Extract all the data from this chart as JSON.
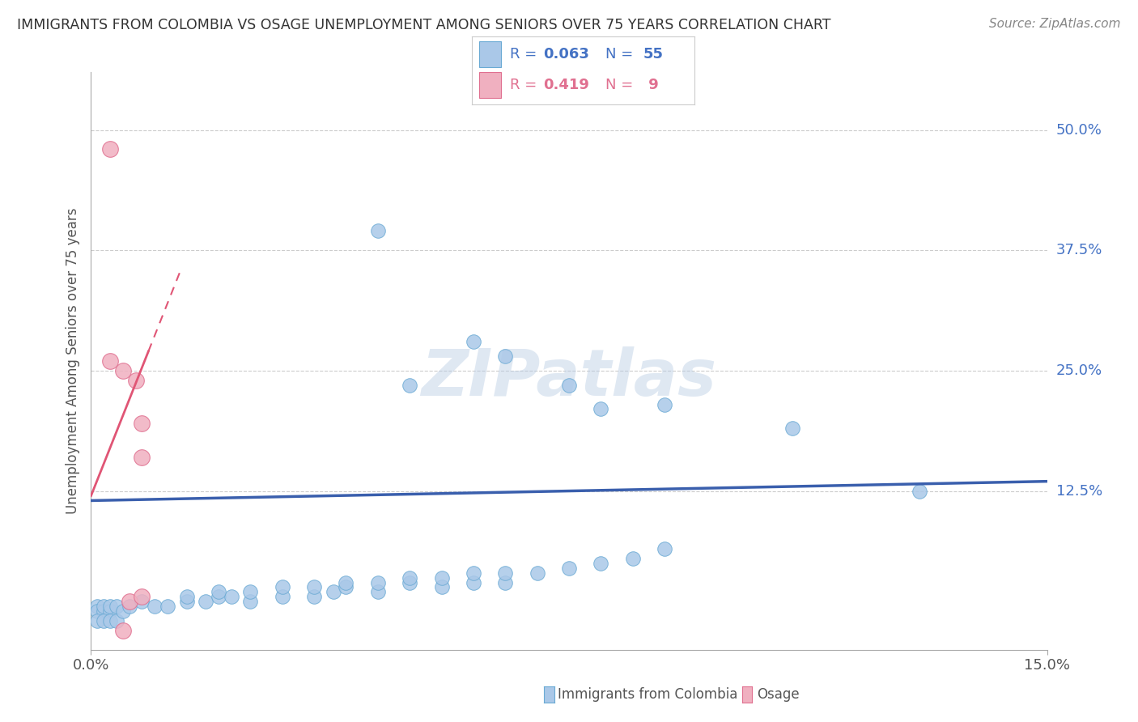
{
  "title": "IMMIGRANTS FROM COLOMBIA VS OSAGE UNEMPLOYMENT AMONG SENIORS OVER 75 YEARS CORRELATION CHART",
  "source": "Source: ZipAtlas.com",
  "ylabel": "Unemployment Among Seniors over 75 years",
  "ylabel_right_ticks": [
    "50.0%",
    "37.5%",
    "25.0%",
    "12.5%"
  ],
  "ylabel_right_values": [
    0.5,
    0.375,
    0.25,
    0.125
  ],
  "xmin": 0.0,
  "xmax": 0.15,
  "ymin": -0.04,
  "ymax": 0.56,
  "colombia_color": "#aac8e8",
  "colombia_edge": "#6aaad4",
  "osage_color": "#f0b0c0",
  "osage_edge": "#e07090",
  "trendline_colombia_color": "#3a5fad",
  "trendline_osage_color": "#e05575",
  "watermark": "ZIPatlas",
  "colombia_points": [
    [
      0.001,
      0.005
    ],
    [
      0.001,
      0.0
    ],
    [
      0.002,
      0.0
    ],
    [
      0.002,
      0.005
    ],
    [
      0.003,
      0.0
    ],
    [
      0.003,
      0.005
    ],
    [
      0.004,
      0.005
    ],
    [
      0.001,
      -0.01
    ],
    [
      0.002,
      -0.01
    ],
    [
      0.003,
      -0.01
    ],
    [
      0.004,
      -0.01
    ],
    [
      0.005,
      0.0
    ],
    [
      0.006,
      0.005
    ],
    [
      0.008,
      0.01
    ],
    [
      0.01,
      0.005
    ],
    [
      0.012,
      0.005
    ],
    [
      0.015,
      0.01
    ],
    [
      0.018,
      0.01
    ],
    [
      0.02,
      0.015
    ],
    [
      0.022,
      0.015
    ],
    [
      0.025,
      0.01
    ],
    [
      0.015,
      0.015
    ],
    [
      0.02,
      0.02
    ],
    [
      0.025,
      0.02
    ],
    [
      0.03,
      0.015
    ],
    [
      0.035,
      0.015
    ],
    [
      0.038,
      0.02
    ],
    [
      0.03,
      0.025
    ],
    [
      0.035,
      0.025
    ],
    [
      0.04,
      0.025
    ],
    [
      0.045,
      0.02
    ],
    [
      0.04,
      0.03
    ],
    [
      0.045,
      0.03
    ],
    [
      0.05,
      0.03
    ],
    [
      0.055,
      0.025
    ],
    [
      0.05,
      0.035
    ],
    [
      0.055,
      0.035
    ],
    [
      0.06,
      0.03
    ],
    [
      0.065,
      0.03
    ],
    [
      0.06,
      0.04
    ],
    [
      0.065,
      0.04
    ],
    [
      0.07,
      0.04
    ],
    [
      0.075,
      0.045
    ],
    [
      0.08,
      0.05
    ],
    [
      0.085,
      0.055
    ],
    [
      0.09,
      0.065
    ],
    [
      0.05,
      0.235
    ],
    [
      0.06,
      0.28
    ],
    [
      0.065,
      0.265
    ],
    [
      0.075,
      0.235
    ],
    [
      0.08,
      0.21
    ],
    [
      0.045,
      0.395
    ],
    [
      0.13,
      0.125
    ],
    [
      0.09,
      0.215
    ],
    [
      0.11,
      0.19
    ]
  ],
  "osage_points": [
    [
      0.005,
      -0.02
    ],
    [
      0.006,
      0.01
    ],
    [
      0.008,
      0.015
    ],
    [
      0.008,
      0.16
    ],
    [
      0.008,
      0.195
    ],
    [
      0.007,
      0.24
    ],
    [
      0.005,
      0.25
    ],
    [
      0.003,
      0.26
    ],
    [
      0.003,
      0.48
    ]
  ]
}
